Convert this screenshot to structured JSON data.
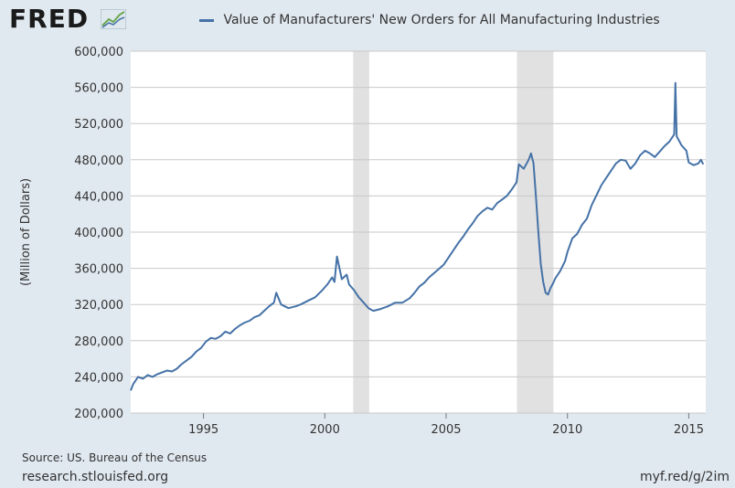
{
  "header": {
    "logo_text": "FRED",
    "logo_icon": "trend-chart-icon",
    "legend_label": "Value of Manufacturers' New Orders for All Manufacturing Industries"
  },
  "footer": {
    "source": "Source: US. Bureau of the Census",
    "site": "research.stlouisfed.org",
    "shortlink": "myf.red/g/2im"
  },
  "colors": {
    "background": "#e1e9f0",
    "plot_bg": "#ffffff",
    "line": "#4572a7",
    "recession": "#e1e1e1",
    "grid": "#c8c8c8"
  },
  "chart_data": {
    "type": "line",
    "title": "Value of Manufacturers' New Orders for All Manufacturing Industries",
    "xlabel": "",
    "ylabel": "(Million of Dollars)",
    "xlim": [
      1992.0,
      2015.7
    ],
    "ylim": [
      200000,
      600000
    ],
    "x_ticks": [
      1995,
      2000,
      2005,
      2010,
      2015
    ],
    "x_tick_labels": [
      "1995",
      "2000",
      "2005",
      "2010",
      "2015"
    ],
    "y_ticks": [
      200000,
      240000,
      280000,
      320000,
      360000,
      400000,
      440000,
      480000,
      520000,
      560000,
      600000
    ],
    "y_tick_labels": [
      "200,000",
      "240,000",
      "280,000",
      "320,000",
      "360,000",
      "400,000",
      "440,000",
      "480,000",
      "520,000",
      "560,000",
      "600,000"
    ],
    "grid": true,
    "legend": "top",
    "recessions": [
      [
        2001.17,
        2001.83
      ],
      [
        2007.92,
        2009.42
      ]
    ],
    "series": [
      {
        "name": "Value of Manufacturers' New Orders for All Manufacturing Industries",
        "x": [
          1992.0,
          1992.1,
          1992.3,
          1992.5,
          1992.7,
          1992.9,
          1993.1,
          1993.3,
          1993.5,
          1993.7,
          1993.9,
          1994.1,
          1994.3,
          1994.5,
          1994.7,
          1994.9,
          1995.1,
          1995.3,
          1995.5,
          1995.7,
          1995.9,
          1996.1,
          1996.3,
          1996.5,
          1996.7,
          1996.9,
          1997.1,
          1997.3,
          1997.5,
          1997.7,
          1997.9,
          1998.0,
          1998.2,
          1998.5,
          1998.8,
          1999.0,
          1999.3,
          1999.6,
          1999.9,
          2000.1,
          2000.3,
          2000.4,
          2000.5,
          2000.7,
          2000.9,
          2001.0,
          2001.2,
          2001.4,
          2001.6,
          2001.8,
          2002.0,
          2002.3,
          2002.6,
          2002.9,
          2003.2,
          2003.5,
          2003.7,
          2003.9,
          2004.1,
          2004.3,
          2004.6,
          2004.9,
          2005.1,
          2005.3,
          2005.5,
          2005.7,
          2005.9,
          2006.1,
          2006.3,
          2006.5,
          2006.7,
          2006.9,
          2007.1,
          2007.3,
          2007.5,
          2007.7,
          2007.9,
          2008.0,
          2008.2,
          2008.4,
          2008.5,
          2008.6,
          2008.7,
          2008.8,
          2008.9,
          2009.0,
          2009.1,
          2009.2,
          2009.3,
          2009.4,
          2009.5,
          2009.7,
          2009.9,
          2010.0,
          2010.2,
          2010.4,
          2010.6,
          2010.8,
          2011.0,
          2011.2,
          2011.4,
          2011.6,
          2011.8,
          2012.0,
          2012.2,
          2012.4,
          2012.6,
          2012.8,
          2013.0,
          2013.2,
          2013.4,
          2013.6,
          2013.8,
          2014.0,
          2014.2,
          2014.4,
          2014.45,
          2014.5,
          2014.7,
          2014.9,
          2015.0,
          2015.2,
          2015.4,
          2015.5,
          2015.6
        ],
        "values": [
          225000,
          232000,
          240000,
          238000,
          242000,
          240000,
          243000,
          245000,
          247000,
          246000,
          249000,
          254000,
          258000,
          262000,
          268000,
          272000,
          279000,
          283000,
          282000,
          285000,
          290000,
          288000,
          293000,
          297000,
          300000,
          302000,
          306000,
          308000,
          313000,
          318000,
          322000,
          333000,
          320000,
          316000,
          318000,
          320000,
          324000,
          328000,
          336000,
          342000,
          350000,
          345000,
          373000,
          348000,
          353000,
          342000,
          336000,
          328000,
          322000,
          316000,
          313000,
          315000,
          318000,
          322000,
          322000,
          327000,
          333000,
          340000,
          344000,
          350000,
          357000,
          364000,
          372000,
          380000,
          388000,
          395000,
          403000,
          410000,
          418000,
          423000,
          427000,
          425000,
          432000,
          436000,
          440000,
          447000,
          455000,
          475000,
          470000,
          480000,
          487000,
          476000,
          440000,
          400000,
          365000,
          345000,
          333000,
          331000,
          338000,
          343000,
          349000,
          357000,
          368000,
          378000,
          393000,
          398000,
          408000,
          415000,
          430000,
          441000,
          452000,
          460000,
          468000,
          476000,
          480000,
          479000,
          470000,
          476000,
          485000,
          490000,
          487000,
          483000,
          489000,
          495000,
          500000,
          508000,
          565000,
          506000,
          496000,
          490000,
          477000,
          474000,
          476000,
          480000,
          475000
        ]
      }
    ]
  }
}
